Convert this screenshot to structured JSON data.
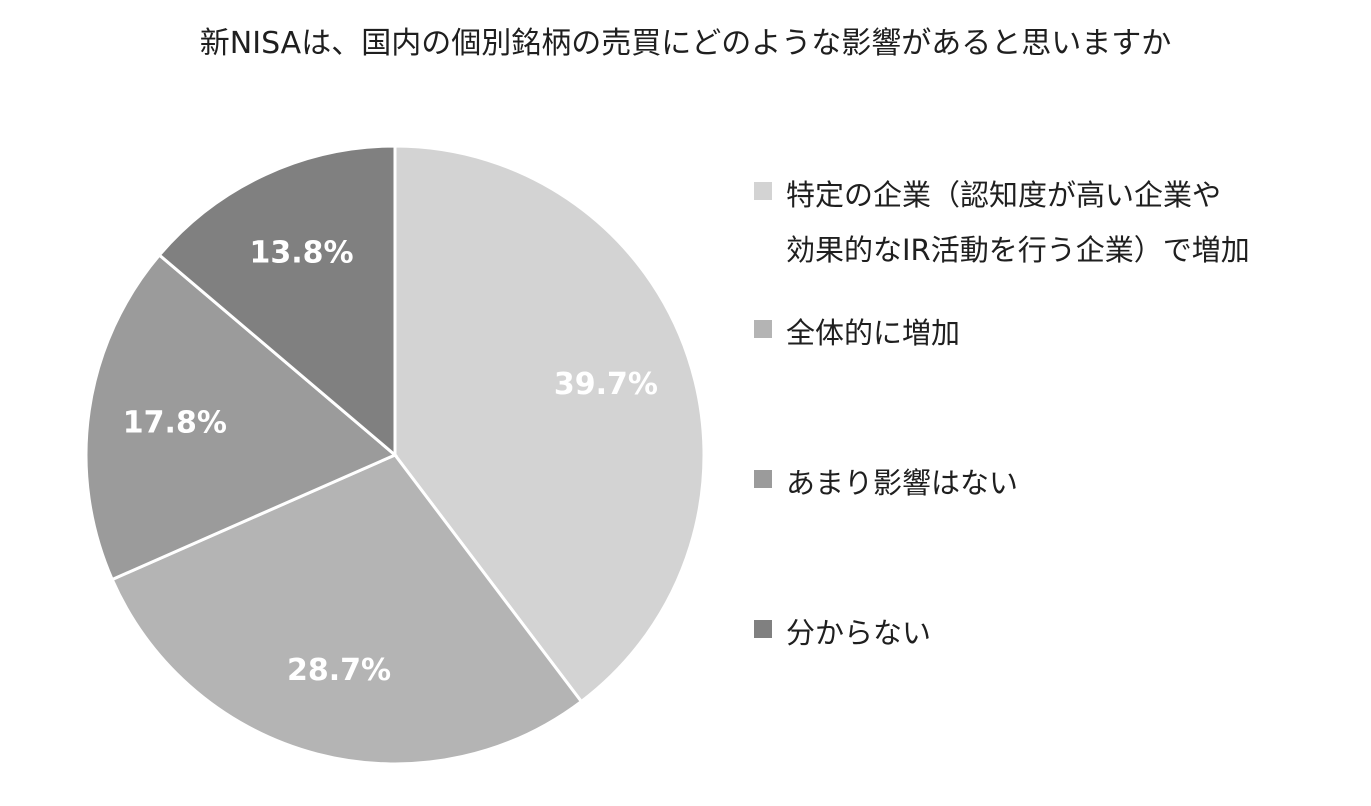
{
  "chart_data": {
    "type": "pie",
    "title": "新NISAは、国内の個別銘柄の売買にどのような影響があると思いますか",
    "series": [
      {
        "name": "",
        "slices": [
          {
            "label": "特定の企業（認知度が高い企業や\n効果的なIR活動を行う企業）で増加",
            "value": 39.7,
            "display": "39.7%",
            "color": "#d3d3d3"
          },
          {
            "label": "全体的に増加",
            "value": 28.7,
            "display": "28.7%",
            "color": "#b4b4b4"
          },
          {
            "label": "あまり影響はない",
            "value": 17.8,
            "display": "17.8%",
            "color": "#9b9b9b"
          },
          {
            "label": "分からない",
            "value": 13.8,
            "display": "13.8%",
            "color": "#808080"
          }
        ]
      }
    ],
    "start": "12 o'clock",
    "direction": "clockwise",
    "legend_position": "right"
  }
}
